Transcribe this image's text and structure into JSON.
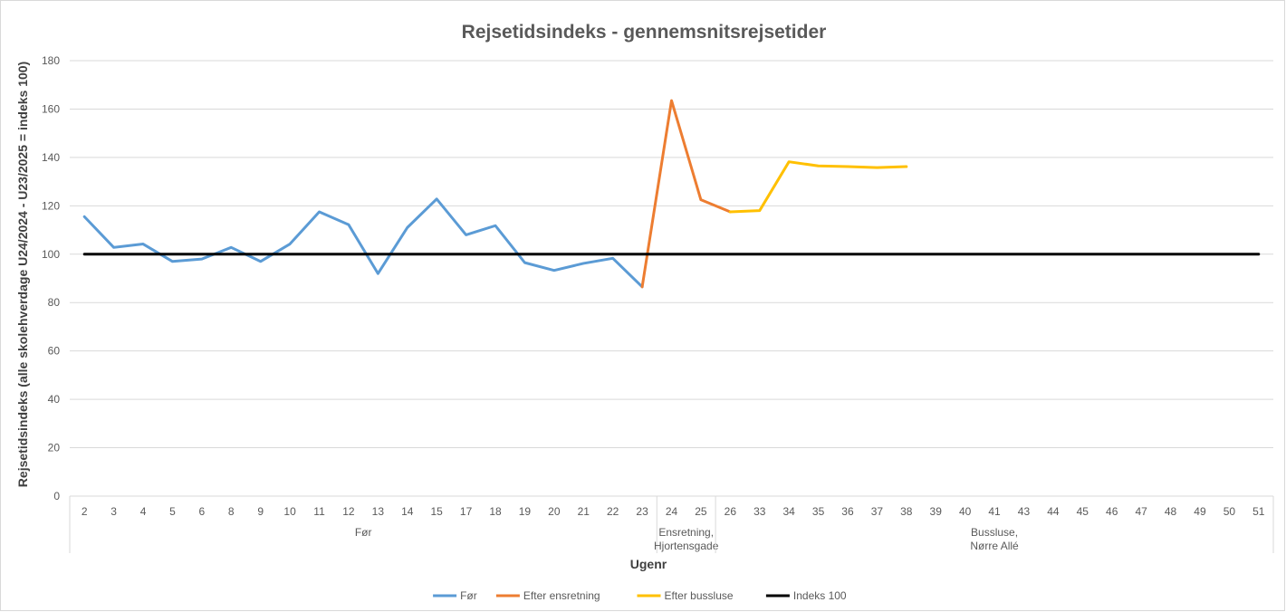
{
  "chart_data": {
    "type": "line",
    "title": "Rejsetidsindeks - gennemsnitsrejsetider",
    "xlabel": "Ugenr",
    "ylabel": "Rejsetidsindeks (alle skolehverdage U24/2024 - U23/2025 = indeks 100)",
    "ylim": [
      0,
      180
    ],
    "yticks": [
      0,
      20,
      40,
      60,
      80,
      100,
      120,
      140,
      160,
      180
    ],
    "grid": true,
    "legend_position": "bottom",
    "categories": [
      "2",
      "3",
      "4",
      "5",
      "6",
      "8",
      "9",
      "10",
      "11",
      "12",
      "13",
      "14",
      "15",
      "17",
      "18",
      "19",
      "20",
      "21",
      "22",
      "23",
      "24",
      "25",
      "26",
      "33",
      "34",
      "35",
      "36",
      "37",
      "38",
      "39",
      "40",
      "41",
      "43",
      "44",
      "45",
      "46",
      "47",
      "48",
      "49",
      "50",
      "51"
    ],
    "groups": [
      {
        "label": "Før",
        "start": 0,
        "end": 19
      },
      {
        "label": "Ensretning,\nHjortensgade",
        "start": 20,
        "end": 21
      },
      {
        "label": "Bussluse,\nNørre Allé",
        "start": 22,
        "end": 40
      }
    ],
    "series": [
      {
        "name": "Før",
        "color": "#5b9bd5",
        "values": [
          115.5,
          102.8,
          104.2,
          97.0,
          98.0,
          102.8,
          97.0,
          104.2,
          117.5,
          112.2,
          92.0,
          111.0,
          122.8,
          108.0,
          111.8,
          96.5,
          93.3,
          96.2,
          98.3,
          86.5,
          null,
          null,
          null,
          null,
          null,
          null,
          null,
          null,
          null,
          null,
          null,
          null,
          null,
          null,
          null,
          null,
          null,
          null,
          null,
          null,
          null
        ]
      },
      {
        "name": "Efter ensretning",
        "color": "#ed7d31",
        "values": [
          null,
          null,
          null,
          null,
          null,
          null,
          null,
          null,
          null,
          null,
          null,
          null,
          null,
          null,
          null,
          null,
          null,
          null,
          null,
          86.5,
          163.5,
          122.5,
          117.5,
          null,
          null,
          null,
          null,
          null,
          null,
          null,
          null,
          null,
          null,
          null,
          null,
          null,
          null,
          null,
          null,
          null,
          null
        ]
      },
      {
        "name": "Efter bussluse",
        "color": "#ffc000",
        "values": [
          null,
          null,
          null,
          null,
          null,
          null,
          null,
          null,
          null,
          null,
          null,
          null,
          null,
          null,
          null,
          null,
          null,
          null,
          null,
          null,
          null,
          null,
          117.5,
          118.0,
          138.2,
          136.5,
          136.2,
          135.8,
          136.2,
          null,
          null,
          null,
          null,
          null,
          null,
          null,
          null,
          null,
          null,
          null,
          null
        ]
      },
      {
        "name": "Indeks 100",
        "color": "#000000",
        "values": [
          100,
          100,
          100,
          100,
          100,
          100,
          100,
          100,
          100,
          100,
          100,
          100,
          100,
          100,
          100,
          100,
          100,
          100,
          100,
          100,
          100,
          100,
          100,
          100,
          100,
          100,
          100,
          100,
          100,
          100,
          100,
          100,
          100,
          100,
          100,
          100,
          100,
          100,
          100,
          100,
          100
        ]
      }
    ]
  }
}
